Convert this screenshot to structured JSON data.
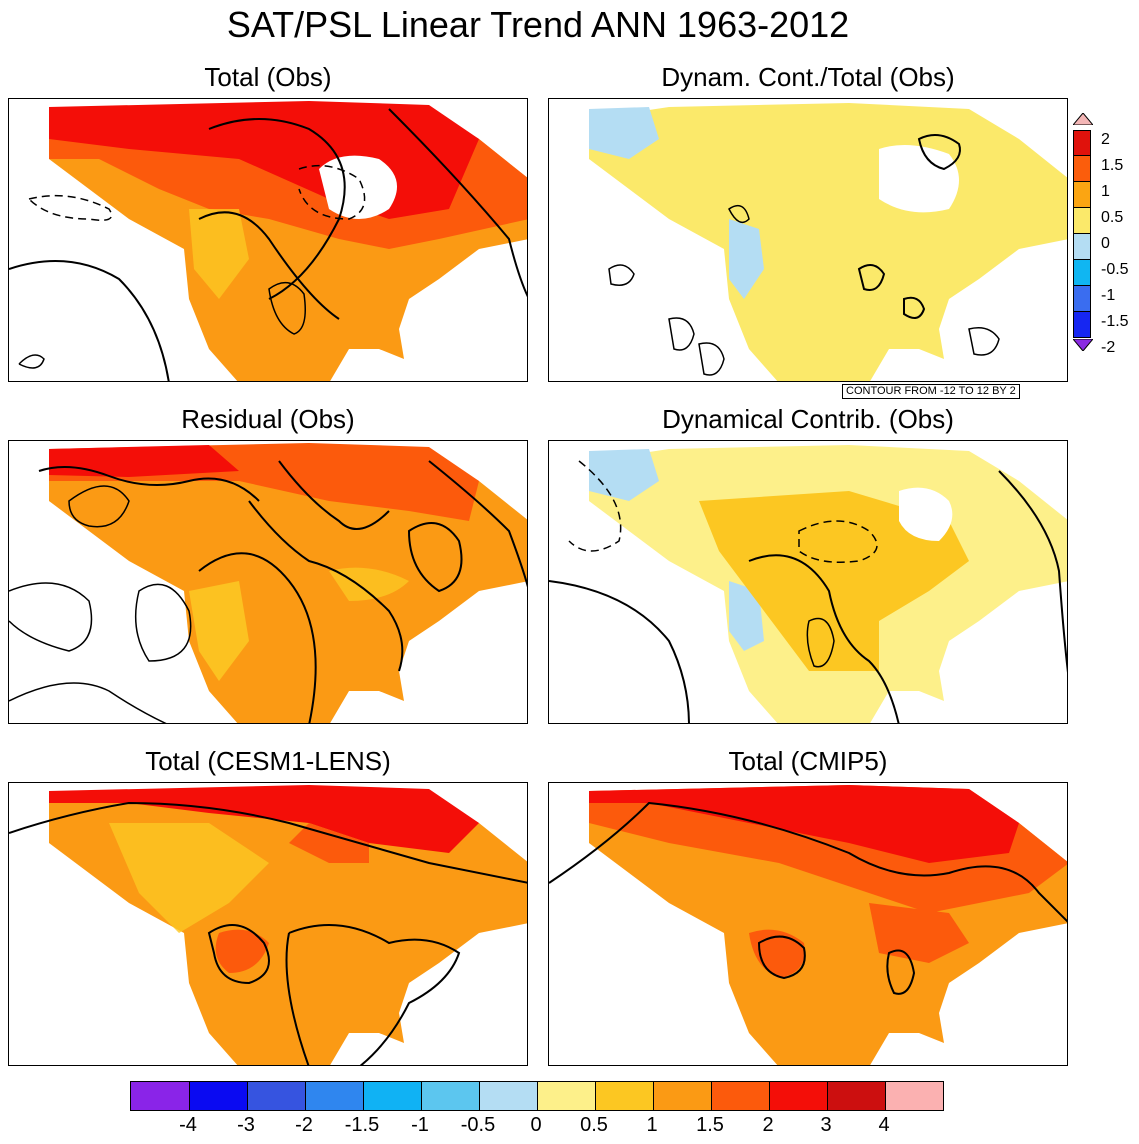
{
  "title": "SAT/PSL Linear Trend ANN 1963-2012",
  "panels": [
    {
      "title": "Total (Obs)"
    },
    {
      "title": "Dynam. Cont./Total (Obs)"
    },
    {
      "title": "Residual (Obs)"
    },
    {
      "title": "Dynamical Contrib. (Obs)"
    },
    {
      "title": "Total (CESM1-LENS)"
    },
    {
      "title": "Total (CMIP5)"
    }
  ],
  "contour_note": "CONTOUR FROM -12 TO 12 BY 2",
  "ratio_colorbar": {
    "labels": [
      "2",
      "1.5",
      "1",
      "0.5",
      "0",
      "-0.5",
      "-1",
      "-1.5",
      "-2"
    ],
    "colors": [
      "#f4b6b6",
      "#e0120c",
      "#fb5d0c",
      "#fba512",
      "#fbe96a",
      "#b4ddf3",
      "#10b6f2",
      "#3a6df0",
      "#1626f2",
      "#8a2be2"
    ]
  },
  "trend_colorbar": {
    "labels": [
      "-4",
      "-3",
      "-2",
      "-1.5",
      "-1",
      "-0.5",
      "0",
      "0.5",
      "1",
      "1.5",
      "2",
      "3",
      "4"
    ],
    "colors": [
      "#8a24e8",
      "#0a0af2",
      "#3654e0",
      "#2f86ef",
      "#10b2f4",
      "#5cc6ef",
      "#b4ddf3",
      "#fdf08a",
      "#fcc722",
      "#fb9a14",
      "#fc5a0c",
      "#f40e08",
      "#cc0f0f",
      "#fbb1b1"
    ]
  }
}
